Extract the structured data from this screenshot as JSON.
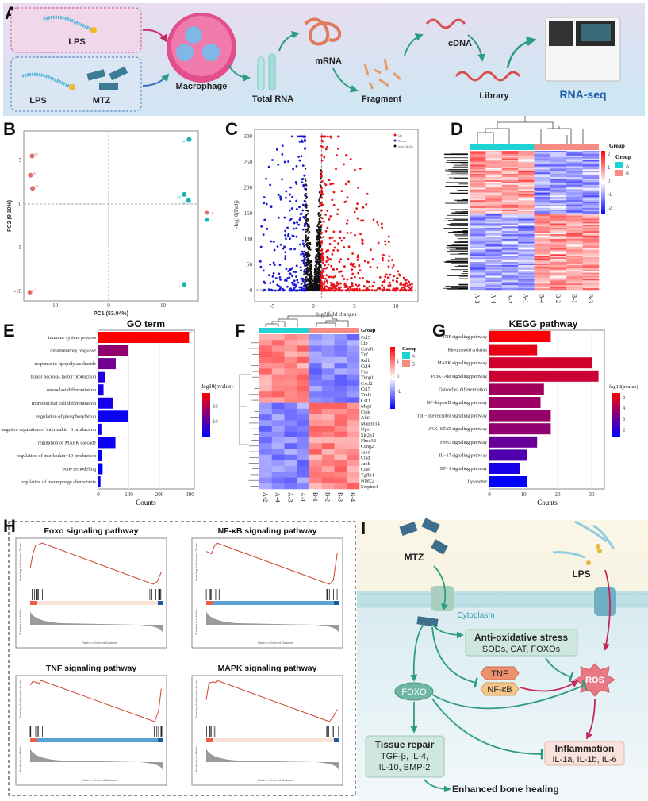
{
  "panel_labels": [
    "A",
    "B",
    "C",
    "D",
    "E",
    "F",
    "G",
    "H",
    "I"
  ],
  "panel_a": {
    "lps_label": "LPS",
    "lps2_label": "LPS",
    "mtz_label": "MTZ",
    "macrophage": "Macrophage",
    "total_rna": "Total RNA",
    "mrna": "mRNA",
    "fragment": "Fragment",
    "cdna": "cDNA",
    "library": "Library",
    "rnaseq": "RNA-seq",
    "rnaseq_color": "#1f5fa8"
  },
  "chart_data": [
    {
      "id": "pca",
      "type": "scatter",
      "xlabel": "PC1 (53.04%)",
      "ylabel": "PC2 (9.10%)",
      "xlim": [
        -15.5,
        16
      ],
      "ylim": [
        -10.8,
        8
      ],
      "xticks": [
        "-10",
        "0",
        "10"
      ],
      "yticks": [
        "5",
        "0",
        "-5",
        "-10"
      ],
      "legend": [
        {
          "name": "B",
          "color": "#e06b6b"
        },
        {
          "name": "A",
          "color": "#17b3b0"
        }
      ],
      "points": [
        {
          "label": "B2",
          "group": "B",
          "x": -14.1,
          "y": 5.5
        },
        {
          "label": "B4",
          "group": "B",
          "x": -14.4,
          "y": 3.3
        },
        {
          "label": "B1",
          "group": "B",
          "x": -14.0,
          "y": 1.8
        },
        {
          "label": "B3",
          "group": "B",
          "x": -14.5,
          "y": -10.1
        },
        {
          "label": "A4",
          "group": "A",
          "x": 14.8,
          "y": 7.4
        },
        {
          "label": "A2",
          "group": "A",
          "x": 13.9,
          "y": 1.1
        },
        {
          "label": "A3",
          "group": "A",
          "x": 14.7,
          "y": 0.4
        },
        {
          "label": "A1",
          "group": "A",
          "x": 13.9,
          "y": -9.2
        }
      ]
    },
    {
      "id": "volcano",
      "type": "scatter",
      "xlabel": "log2(fold change)",
      "ylabel": "-log10(Padj)",
      "xlim": [
        -7,
        12.5
      ],
      "ylim": [
        -8,
        315
      ],
      "xticks": [
        "-5",
        "0",
        "5",
        "10"
      ],
      "yticks": [
        "0",
        "50",
        "100",
        "150",
        "200",
        "250",
        "300"
      ],
      "legend": [
        {
          "name": "Up",
          "color": "#e8141a"
        },
        {
          "name": "Down",
          "color": "#1a1ad6"
        },
        {
          "name": "non-DEGs",
          "color": "#111111"
        }
      ]
    },
    {
      "id": "heatmap_deg",
      "type": "heatmap",
      "columns": [
        "A-3",
        "A-4",
        "A-2",
        "A-1",
        "B-4",
        "B-2",
        "B-1",
        "B-3"
      ],
      "legend_title": "Group",
      "groups": [
        {
          "name": "A",
          "color": "#1fd3d3"
        },
        {
          "name": "B",
          "color": "#f58c84"
        }
      ],
      "scale_ticks": [
        "2",
        "1",
        "0",
        "-1",
        "-2"
      ]
    },
    {
      "id": "go",
      "type": "bar",
      "title": "GO term",
      "xlabel": "Counts",
      "xlim": [
        0,
        310
      ],
      "xticks": [
        "0",
        "100",
        "200",
        "300"
      ],
      "color_label": "-log10(pvalue)",
      "color_ticks": [
        "20",
        "10"
      ],
      "color_range": [
        5,
        28
      ],
      "categories": [
        "immune system process",
        "inflammatory response",
        "response to lipopolysaccharide",
        "tumor necrosis factor production",
        "osteoclast differentiation",
        "mononuclear cell differentiation",
        "regulation of phosphorylation",
        "negative regulation of interleukin−6 production",
        "regulation of MAPK cascade",
        "regulation of interleukin−10 production",
        "bone remodeling",
        "regulation of macrophage chemotaxis"
      ],
      "values": [
        297,
        98,
        57,
        23,
        17,
        47,
        98,
        10,
        56,
        11,
        14,
        7
      ],
      "pvalues": [
        28,
        18,
        15,
        8,
        7,
        7,
        6,
        6,
        6,
        5,
        5,
        5
      ]
    },
    {
      "id": "heatmap_genes",
      "type": "heatmap",
      "columns": [
        "A-2",
        "A-4",
        "A-3",
        "A-1",
        "B-1",
        "B-2",
        "B-3",
        "B-4"
      ],
      "rows": [
        "Ccl3",
        "Ltb",
        "Ccnd1",
        "Tnf",
        "Relb",
        "Ccl4",
        "Fos",
        "Timp1",
        "Cxcl2",
        "Ccl7",
        "Traf1",
        "Csf1",
        "Mapt",
        "Ctsk",
        "Akt3",
        "Map3k14",
        "Nps1",
        "Slc2a1",
        "Fbxo32",
        "Ccng2",
        "Jund",
        "Ctsd",
        "Junb",
        "Ctse",
        "Tgfbr1",
        "Nfatc2",
        "Serpine1"
      ],
      "high_in_A_count": 12,
      "header_label": "Group",
      "legend_title": "Group",
      "groups": [
        {
          "name": "A",
          "color": "#1fd3d3"
        },
        {
          "name": "B",
          "color": "#f58c84"
        }
      ],
      "scale_ticks": [
        "1",
        "0",
        "-1"
      ]
    },
    {
      "id": "kegg",
      "type": "bar",
      "title": "KEGG pathway",
      "xlabel": "Counts",
      "xlim": [
        0,
        33
      ],
      "xticks": [
        "0",
        "10",
        "20",
        "30"
      ],
      "color_label": "-log10(pvalue)",
      "color_ticks": [
        "5",
        "4",
        "3",
        "2"
      ],
      "color_range": [
        1.2,
        5.6
      ],
      "categories": [
        "TNF signaling pathway",
        "Rheumatoid arthritis",
        "MAPK signaling pathway",
        "PI3K−Akt signaling pathway",
        "Osteoclast differentiation",
        "NF−kappa B signaling pathway",
        "Toll−like receptor signaling pathway",
        "JAK−STAT signaling pathway",
        "FoxO signaling pathway",
        "IL−17 signaling pathway",
        "HIF−1 signaling pathway",
        "Lysosome"
      ],
      "values": [
        18,
        14,
        30,
        32,
        16,
        15,
        18,
        18,
        14,
        11,
        9,
        11
      ],
      "pvalues": [
        5.5,
        5.2,
        4.8,
        4.7,
        4.0,
        3.9,
        3.8,
        3.7,
        3.0,
        2.6,
        1.6,
        1.2
      ]
    },
    {
      "id": "gsea",
      "type": "line",
      "ylabel_top": "Running Enrichment Score",
      "ylabel_bottom": "Ranked List Metric",
      "xlabel": "Rank in Ordered Dataset",
      "plots": [
        {
          "title": "Foxo signaling pathway",
          "es": [
            [
              0,
              0
            ],
            [
              0.02,
              0.2
            ],
            [
              0.04,
              0.32
            ],
            [
              0.07,
              0.34
            ],
            [
              0.09,
              0.36
            ],
            [
              0.93,
              -0.22
            ],
            [
              0.96,
              -0.18
            ],
            [
              0.99,
              -0.05
            ]
          ],
          "bar": "light"
        },
        {
          "title": "NF-κB signaling pathway",
          "es": [
            [
              0,
              0.2
            ],
            [
              0.04,
              0.16
            ],
            [
              0.06,
              0.28
            ],
            [
              0.08,
              0.34
            ],
            [
              0.93,
              -0.35
            ],
            [
              0.96,
              -0.28
            ],
            [
              0.99,
              0.18
            ]
          ],
          "bar": "blue"
        },
        {
          "title": "TNF signaling pathway",
          "es": [
            [
              0,
              0.02
            ],
            [
              0.02,
              0.1
            ],
            [
              0.07,
              0.06
            ],
            [
              0.08,
              0.12
            ],
            [
              0.94,
              -0.72
            ],
            [
              0.97,
              -0.5
            ],
            [
              0.99,
              -0.05
            ]
          ],
          "bar": "blue"
        },
        {
          "title": "MAPK signaling pathway",
          "es": [
            [
              0,
              0.05
            ],
            [
              0.02,
              0.28
            ],
            [
              0.05,
              0.3
            ],
            [
              0.07,
              0.29
            ],
            [
              0.08,
              0.32
            ],
            [
              0.93,
              -0.25
            ],
            [
              0.96,
              -0.18
            ],
            [
              0.99,
              -0.08
            ]
          ],
          "bar": "light"
        }
      ]
    }
  ],
  "panel_i": {
    "mtz": "MTZ",
    "lps": "LPS",
    "cytoplasm": "Cytoplasm",
    "antiox_title": "Anti-oxidative stress",
    "antiox_items": "SODs, CAT, FOXOs",
    "tnf": "TNF",
    "nfkb": "NF-κB",
    "foxo": "FOXO",
    "ros": "ROS",
    "repair_title": "Tissue repair",
    "repair_l1": "TGF-β, IL-4,",
    "repair_l2": "IL-10, BMP-2",
    "inflam_title": "Inflammation",
    "inflam_items": "IL-1a, IL-1b, IL-6",
    "outcome": "Enhanced bone healing"
  }
}
